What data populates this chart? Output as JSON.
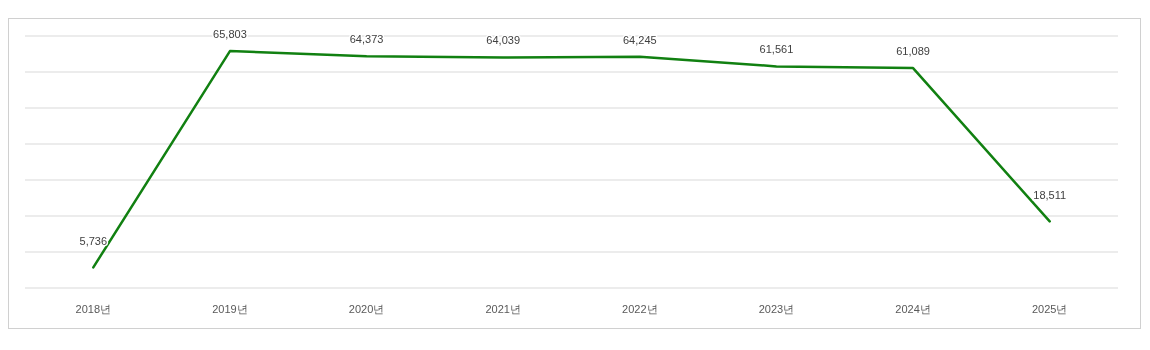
{
  "chart_data": {
    "type": "line",
    "categories": [
      "2018년",
      "2019년",
      "2020년",
      "2021년",
      "2022년",
      "2023년",
      "2024년",
      "2025년"
    ],
    "series": [
      {
        "color": "#118011",
        "values": [
          5736,
          65803,
          64373,
          64039,
          64245,
          61561,
          61089,
          18511
        ],
        "value_labels": [
          "5,736",
          "65,803",
          "64,373",
          "64,039",
          "64,245",
          "61,561",
          "61,089",
          "18,511"
        ]
      }
    ],
    "grid": "y",
    "tick_labels": "x",
    "marker": "none",
    "line_style": "solid"
  }
}
